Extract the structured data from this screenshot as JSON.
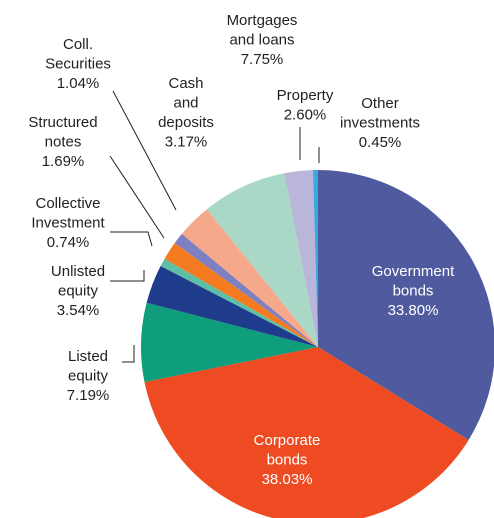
{
  "chart_data": {
    "type": "pie",
    "categories": [
      "Government bonds",
      "Corporate bonds",
      "Listed equity",
      "Unlisted equity",
      "Collective Investment",
      "Structured notes",
      "Coll. Securities",
      "Cash and deposits",
      "Mortgages and loans",
      "Property",
      "Other investments"
    ],
    "values": [
      33.8,
      38.03,
      7.19,
      3.54,
      0.74,
      1.69,
      1.04,
      3.17,
      7.75,
      2.6,
      0.45
    ],
    "value_labels": [
      "33.80%",
      "38.03%",
      "7.19%",
      "3.54%",
      "0.74%",
      "1.69%",
      "1.04%",
      "3.17%",
      "7.75%",
      "2.60%",
      "0.45%"
    ],
    "colors": [
      "#4f5b9e",
      "#ee4b23",
      "#0e9e7b",
      "#1f3c8c",
      "#5dbfa5",
      "#f47b20",
      "#7d80c1",
      "#f6a98a",
      "#a9d8c6",
      "#bab6d9",
      "#3aa9e0"
    ]
  }
}
